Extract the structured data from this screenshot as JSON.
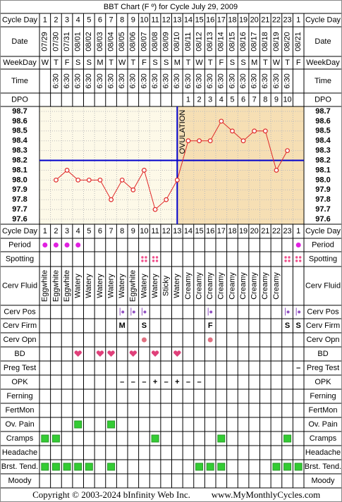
{
  "title": "BBT Chart (F º) for Cycle July 29, 2009",
  "header_labels": {
    "cycle_day": "Cycle Day",
    "date": "Date",
    "weekday": "WeekDay",
    "time": "Time",
    "dpo": "DPO"
  },
  "cycle_days": [
    1,
    2,
    3,
    4,
    5,
    6,
    7,
    8,
    9,
    10,
    11,
    12,
    13,
    14,
    15,
    16,
    17,
    18,
    19,
    20,
    21,
    22,
    23,
    1
  ],
  "dates": [
    "07/29",
    "07/30",
    "07/31",
    "08/01",
    "08/02",
    "08/03",
    "08/04",
    "08/05",
    "08/06",
    "08/07",
    "08/08",
    "08/09",
    "08/10",
    "08/11",
    "08/12",
    "08/13",
    "08/14",
    "08/15",
    "08/16",
    "08/17",
    "08/18",
    "08/19",
    "08/20",
    "08/21"
  ],
  "weekdays": [
    "W",
    "T",
    "F",
    "S",
    "S",
    "M",
    "T",
    "W",
    "T",
    "F",
    "S",
    "S",
    "M",
    "T",
    "W",
    "T",
    "F",
    "S",
    "S",
    "M",
    "T",
    "W",
    "T",
    "F"
  ],
  "times": [
    null,
    "6:30",
    "6:30",
    "6:30",
    "6:30",
    "6:30",
    "6:30",
    "6:30",
    "6:30",
    "6:30",
    "6:30",
    "6:30",
    "6:30",
    "6:30",
    "6:30",
    "6:30",
    "6:30",
    "6:30",
    "6:30",
    "6:30",
    "6:30",
    "6:30",
    "6:30",
    null
  ],
  "dpo": [
    null,
    null,
    null,
    null,
    null,
    null,
    null,
    null,
    null,
    null,
    null,
    null,
    null,
    1,
    2,
    3,
    4,
    5,
    6,
    7,
    8,
    9,
    10,
    null
  ],
  "chart_data": {
    "type": "line",
    "series": [
      {
        "name": "BBT",
        "color": "#e02828",
        "values": [
          null,
          98.0,
          98.1,
          98.0,
          98.0,
          98.0,
          97.8,
          98.0,
          97.9,
          98.1,
          97.7,
          97.8,
          98.0,
          98.4,
          98.4,
          98.4,
          98.6,
          98.5,
          98.4,
          98.5,
          98.5,
          98.1,
          98.3,
          null
        ]
      }
    ],
    "ylim": [
      97.55,
      98.75
    ],
    "yticks": [
      98.7,
      98.6,
      98.5,
      98.4,
      98.3,
      98.2,
      98.1,
      {
        "value": 98.0,
        "label": "98.0"
      },
      97.9,
      97.8,
      97.7,
      97.6
    ],
    "grid": true,
    "coverline": 98.2,
    "coverline_color": "#0000cc",
    "ovulation_index": 12,
    "ovulation_label": "OVULATION",
    "follicular_color": "#fdf9e8",
    "luteal_color": "#f6dfb4"
  },
  "rows": [
    {
      "label": "Period",
      "symbol": "dot",
      "color": "#e020e0",
      "cells": [
        true,
        true,
        true,
        true,
        null,
        null,
        null,
        null,
        null,
        null,
        null,
        null,
        null,
        null,
        null,
        null,
        null,
        null,
        null,
        null,
        null,
        null,
        null,
        true
      ]
    },
    {
      "label": "Spotting",
      "symbol": "dots4",
      "color": "#f0508c",
      "cells": [
        null,
        null,
        null,
        null,
        null,
        null,
        null,
        null,
        null,
        true,
        true,
        null,
        null,
        null,
        null,
        null,
        null,
        null,
        null,
        null,
        null,
        null,
        true,
        true
      ]
    },
    {
      "label": "Cerv Fluid",
      "symbol": "vtext",
      "color": "#000000",
      "cells": [
        "Eggwhite",
        "Eggwhite",
        "Eggwhite",
        "Watery",
        "Watery",
        "Watery",
        "Watery",
        "Watery",
        "Eggwhite",
        "Watery",
        "Watery",
        "Sticky",
        "Watery",
        "Creamy",
        "Creamy",
        "Creamy",
        "Creamy",
        "Creamy",
        "Creamy",
        "Creamy",
        "Creamy",
        "Creamy",
        null,
        null
      ]
    },
    {
      "label": "Cerv Pos",
      "symbol": "pos",
      "color": "#9050c0",
      "cells": [
        null,
        null,
        null,
        null,
        null,
        null,
        null,
        true,
        true,
        true,
        null,
        null,
        null,
        null,
        null,
        true,
        null,
        null,
        null,
        null,
        null,
        null,
        true,
        true
      ]
    },
    {
      "label": "Cerv Firm",
      "symbol": "text",
      "color": "#9050c0",
      "cells": [
        null,
        null,
        null,
        null,
        null,
        null,
        null,
        "M",
        null,
        "S",
        null,
        null,
        null,
        null,
        null,
        "F",
        null,
        null,
        null,
        null,
        null,
        null,
        "S",
        "S"
      ]
    },
    {
      "label": "Cerv Opn",
      "symbol": "dot",
      "color": "#e07080",
      "cells": [
        null,
        null,
        null,
        null,
        null,
        null,
        null,
        null,
        null,
        true,
        null,
        null,
        null,
        null,
        null,
        true,
        null,
        null,
        null,
        null,
        null,
        null,
        null,
        null
      ]
    },
    {
      "label": "BD",
      "symbol": "heart",
      "color": "#e0407a",
      "cells": [
        null,
        null,
        null,
        true,
        null,
        true,
        true,
        null,
        true,
        null,
        true,
        null,
        true,
        null,
        null,
        null,
        null,
        null,
        null,
        null,
        null,
        null,
        null,
        null
      ]
    },
    {
      "label": "Preg Test",
      "symbol": "text",
      "color": "#8040c0",
      "cells": [
        null,
        null,
        null,
        null,
        null,
        null,
        null,
        null,
        null,
        null,
        null,
        null,
        null,
        null,
        null,
        null,
        null,
        null,
        null,
        null,
        null,
        null,
        null,
        "–"
      ]
    },
    {
      "label": "OPK",
      "symbol": "text",
      "color": "#8040c0",
      "cells": [
        null,
        null,
        null,
        null,
        null,
        null,
        null,
        "–",
        "–",
        "–",
        "+",
        "–",
        "+",
        "–",
        "–",
        null,
        null,
        null,
        null,
        null,
        null,
        null,
        null,
        null
      ]
    },
    {
      "label": "Ferning",
      "symbol": "square",
      "color": "#33cc33",
      "cells": [
        null,
        null,
        null,
        null,
        null,
        null,
        null,
        null,
        null,
        null,
        null,
        null,
        null,
        null,
        null,
        null,
        null,
        null,
        null,
        null,
        null,
        null,
        null,
        null
      ]
    },
    {
      "label": "FertMon",
      "symbol": "square",
      "color": "#33cc33",
      "cells": [
        null,
        null,
        null,
        null,
        null,
        null,
        null,
        null,
        null,
        null,
        null,
        null,
        null,
        null,
        null,
        null,
        null,
        null,
        null,
        null,
        null,
        null,
        null,
        null
      ]
    },
    {
      "label": "Ov. Pain",
      "symbol": "square",
      "color": "#33cc33",
      "cells": [
        null,
        null,
        null,
        true,
        null,
        null,
        true,
        null,
        null,
        null,
        null,
        null,
        null,
        null,
        null,
        null,
        null,
        null,
        null,
        null,
        null,
        null,
        null,
        null
      ]
    },
    {
      "label": "Cramps",
      "symbol": "square",
      "color": "#33cc33",
      "cells": [
        true,
        true,
        null,
        null,
        null,
        null,
        null,
        null,
        null,
        null,
        true,
        null,
        null,
        null,
        null,
        null,
        true,
        null,
        null,
        null,
        null,
        null,
        true,
        null
      ]
    },
    {
      "label": "Headache",
      "symbol": "square",
      "color": "#33cc33",
      "cells": [
        null,
        null,
        null,
        null,
        null,
        null,
        null,
        null,
        null,
        null,
        null,
        null,
        null,
        null,
        null,
        null,
        null,
        null,
        null,
        null,
        null,
        null,
        null,
        null
      ]
    },
    {
      "label": "Brst. Tend.",
      "symbol": "square",
      "color": "#33cc33",
      "cells": [
        true,
        true,
        true,
        true,
        true,
        null,
        true,
        null,
        null,
        null,
        null,
        null,
        null,
        null,
        true,
        true,
        true,
        null,
        null,
        null,
        null,
        true,
        true,
        true
      ]
    },
    {
      "label": "Moody",
      "symbol": "square",
      "color": "#33cc33",
      "cells": [
        null,
        null,
        null,
        null,
        null,
        null,
        null,
        null,
        null,
        null,
        null,
        null,
        null,
        null,
        null,
        null,
        null,
        null,
        null,
        null,
        null,
        null,
        null,
        null
      ]
    }
  ],
  "footer": {
    "copyright": "Copyright © 2003-2024 bInfinity Web Inc.",
    "site": "www.MyMonthlyCycles.com"
  }
}
